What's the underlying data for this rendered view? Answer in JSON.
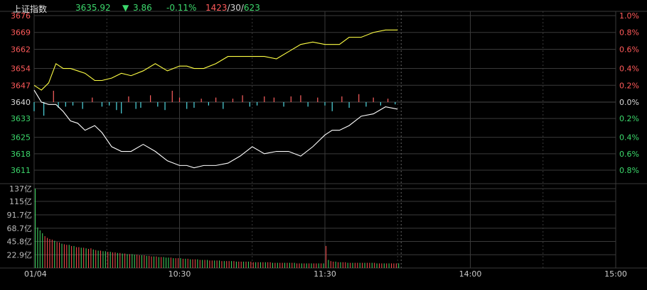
{
  "header": {
    "name": "上证指数",
    "price": "3635.92",
    "arrow": "▼",
    "change": "3.86",
    "change_pct": "-0.11%",
    "advancers": "1423",
    "unchanged": "30",
    "decliners": "623",
    "sep": "/"
  },
  "colors": {
    "background": "#000000",
    "grid": "#3a3a3a",
    "up": "#ff5a5a",
    "down": "#3cd96c",
    "flat": "#d8d8d8",
    "price_line": "#ffffff",
    "avg_line": "#ffff44",
    "breadth_up": "#ff6060",
    "breadth_down": "#4fd8e0",
    "volume_up": "#ff5050",
    "volume_down": "#44dd66"
  },
  "chart_data": [
    {
      "type": "line",
      "panel": "price",
      "ylim": [
        3611,
        3676
      ],
      "prev_close": 3640,
      "y_ticks": [
        "3676",
        "3669",
        "3662",
        "3654",
        "3647",
        "3640",
        "3633",
        "3625",
        "3618",
        "3611"
      ],
      "y_tick_values": [
        3676,
        3669,
        3662,
        3654,
        3647,
        3640,
        3633,
        3625,
        3618,
        3611
      ],
      "pct_ticks": [
        "1.0%",
        "0.8%",
        "0.6%",
        "0.4%",
        "0.2%",
        "0.0%",
        "0.2%",
        "0.4%",
        "0.6%",
        "0.8%"
      ],
      "pct_tick_values": [
        3676,
        3669,
        3662,
        3654,
        3647,
        3640,
        3633,
        3625,
        3618,
        3611
      ],
      "x_ticks": [
        "01/04",
        "10:30",
        "11:30",
        "14:00",
        "15:00"
      ],
      "x_tick_minutes": [
        0,
        60,
        120,
        180,
        240
      ],
      "total_minutes": 240,
      "series": [
        {
          "x": [
            0,
            3,
            6,
            9,
            12,
            15,
            18,
            21,
            25,
            28,
            32,
            36,
            40,
            45,
            50,
            55,
            60,
            63,
            66,
            70,
            75,
            80,
            85,
            90,
            95,
            100,
            105,
            110,
            115,
            120,
            123,
            126,
            130,
            135,
            140,
            145,
            150
          ],
          "y": [
            3645,
            3640,
            3639,
            3639,
            3636,
            3632,
            3631,
            3628,
            3630,
            3627,
            3621,
            3619,
            3619,
            3622,
            3619,
            3615,
            3613,
            3613,
            3612,
            3613,
            3613,
            3614,
            3617,
            3621,
            3618,
            3619,
            3619,
            3617,
            3621,
            3626,
            3628,
            3628,
            3630,
            3634,
            3635,
            3638,
            3637
          ]
        },
        {
          "x": [
            0,
            3,
            6,
            9,
            12,
            15,
            18,
            21,
            25,
            28,
            32,
            36,
            40,
            45,
            50,
            55,
            60,
            63,
            66,
            70,
            75,
            80,
            85,
            90,
            95,
            100,
            105,
            110,
            115,
            120,
            123,
            126,
            130,
            135,
            140,
            145,
            150
          ],
          "y": [
            3647,
            3645,
            3648,
            3656,
            3654,
            3654,
            3653,
            3652,
            3649,
            3649,
            3650,
            3652,
            3651,
            3653,
            3656,
            3653,
            3655,
            3655,
            3654,
            3654,
            3656,
            3659,
            3659,
            3659,
            3659,
            3658,
            3661,
            3664,
            3665,
            3664,
            3664,
            3664,
            3667,
            3667,
            3669,
            3670,
            3670
          ]
        }
      ]
    },
    {
      "type": "bar",
      "panel": "breadth",
      "x": [
        0,
        4,
        8,
        10,
        13,
        16,
        20,
        24,
        28,
        31,
        34,
        36,
        39,
        42,
        44,
        48,
        51,
        54,
        57,
        60,
        63,
        66,
        69,
        72,
        75,
        78,
        82,
        86,
        89,
        92,
        95,
        99,
        103,
        106,
        110,
        113,
        117,
        120,
        123,
        127,
        130,
        134,
        137,
        140,
        143,
        146,
        149
      ],
      "values": [
        -8,
        -12,
        10,
        -5,
        -4,
        -3,
        -6,
        4,
        -4,
        -3,
        -7,
        -10,
        5,
        -6,
        -5,
        6,
        -4,
        -7,
        10,
        4,
        -6,
        -5,
        3,
        -3,
        4,
        -6,
        3,
        6,
        -4,
        -3,
        5,
        4,
        -4,
        5,
        6,
        -4,
        4,
        -3,
        -8,
        5,
        -5,
        7,
        -4,
        4,
        -3,
        3,
        -2
      ]
    },
    {
      "type": "bar",
      "panel": "volume",
      "ylim": [
        0,
        137
      ],
      "y_ticks": [
        "137亿",
        "115亿",
        "91.7亿",
        "68.7亿",
        "45.8亿",
        "22.9亿"
      ],
      "y_tick_values": [
        137,
        115,
        91.7,
        68.7,
        45.8,
        22.9
      ],
      "x": [
        0,
        1,
        2,
        3,
        4,
        5,
        6,
        7,
        8,
        9,
        10,
        11,
        12,
        13,
        14,
        15,
        16,
        17,
        18,
        19,
        20,
        21,
        22,
        23,
        24,
        25,
        26,
        27,
        28,
        29,
        30,
        31,
        32,
        33,
        34,
        35,
        36,
        37,
        38,
        39,
        40,
        41,
        42,
        43,
        44,
        45,
        46,
        47,
        48,
        49,
        50,
        51,
        52,
        53,
        54,
        55,
        56,
        57,
        58,
        59,
        60,
        61,
        62,
        63,
        64,
        65,
        66,
        67,
        68,
        69,
        70,
        71,
        72,
        73,
        74,
        75,
        76,
        77,
        78,
        79,
        80,
        81,
        82,
        83,
        84,
        85,
        86,
        87,
        88,
        89,
        90,
        91,
        92,
        93,
        94,
        95,
        96,
        97,
        98,
        99,
        100,
        101,
        102,
        103,
        104,
        105,
        106,
        107,
        108,
        109,
        110,
        111,
        112,
        113,
        114,
        115,
        116,
        117,
        118,
        119,
        120,
        121,
        122,
        123,
        124,
        125,
        126,
        127,
        128,
        129,
        130,
        131,
        132,
        133,
        134,
        135,
        136,
        137,
        138,
        139,
        140,
        141,
        142,
        143,
        144,
        145,
        146,
        147,
        148,
        149,
        150
      ],
      "values": [
        137,
        70,
        65,
        60,
        55,
        52,
        50,
        49,
        47,
        45,
        44,
        42,
        41,
        40,
        40,
        38,
        38,
        36,
        36,
        35,
        35,
        34,
        33,
        34,
        32,
        31,
        30,
        30,
        29,
        29,
        28,
        28,
        27,
        27,
        26,
        26,
        25,
        25,
        24,
        24,
        24,
        23,
        23,
        22,
        22,
        22,
        21,
        21,
        20,
        20,
        20,
        19,
        19,
        19,
        18,
        18,
        18,
        17,
        17,
        17,
        17,
        16,
        16,
        16,
        15,
        15,
        15,
        15,
        14,
        14,
        14,
        14,
        13,
        13,
        13,
        13,
        13,
        12,
        12,
        12,
        12,
        12,
        12,
        11,
        11,
        11,
        11,
        11,
        11,
        11,
        10,
        10,
        10,
        10,
        10,
        10,
        10,
        10,
        9,
        9,
        9,
        9,
        9,
        9,
        9,
        9,
        9,
        9,
        8,
        8,
        8,
        8,
        8,
        8,
        8,
        8,
        8,
        8,
        8,
        8,
        38,
        14,
        12,
        11,
        11,
        10,
        10,
        10,
        10,
        9,
        9,
        9,
        9,
        9,
        9,
        9,
        9,
        9,
        9,
        9,
        9,
        8,
        8,
        8,
        8,
        8,
        8,
        8,
        8,
        8,
        8
      ],
      "up": [
        0,
        0,
        0,
        0,
        1,
        1,
        1,
        1,
        0,
        1,
        1,
        0,
        1,
        1,
        0,
        1,
        0,
        1,
        1,
        0,
        1,
        0,
        1,
        1,
        0,
        1,
        0,
        1,
        0,
        0,
        1,
        0,
        1,
        1,
        0,
        1,
        0,
        1,
        0,
        1,
        0,
        0,
        1,
        1,
        0,
        1,
        0,
        1,
        1,
        0,
        1,
        0,
        1,
        0,
        0,
        0,
        1,
        0,
        1,
        1,
        0,
        1,
        0,
        1,
        0,
        1,
        1,
        0,
        1,
        0,
        1,
        0,
        1,
        1,
        0,
        1,
        0,
        1,
        0,
        1,
        1,
        0,
        1,
        0,
        1,
        1,
        0,
        1,
        0,
        1,
        1,
        0,
        1,
        0,
        1,
        0,
        1,
        1,
        0,
        1,
        0,
        1,
        1,
        0,
        1,
        0,
        1,
        0,
        1,
        1,
        0,
        1,
        0,
        1,
        0,
        1,
        1,
        0,
        1,
        0,
        1,
        0,
        1,
        1,
        0,
        1,
        0,
        1,
        1,
        0,
        1,
        0,
        1,
        1,
        0,
        1,
        0,
        1,
        1,
        0,
        1,
        0,
        1,
        1,
        0,
        1,
        0,
        1,
        1,
        1,
        0
      ]
    }
  ]
}
